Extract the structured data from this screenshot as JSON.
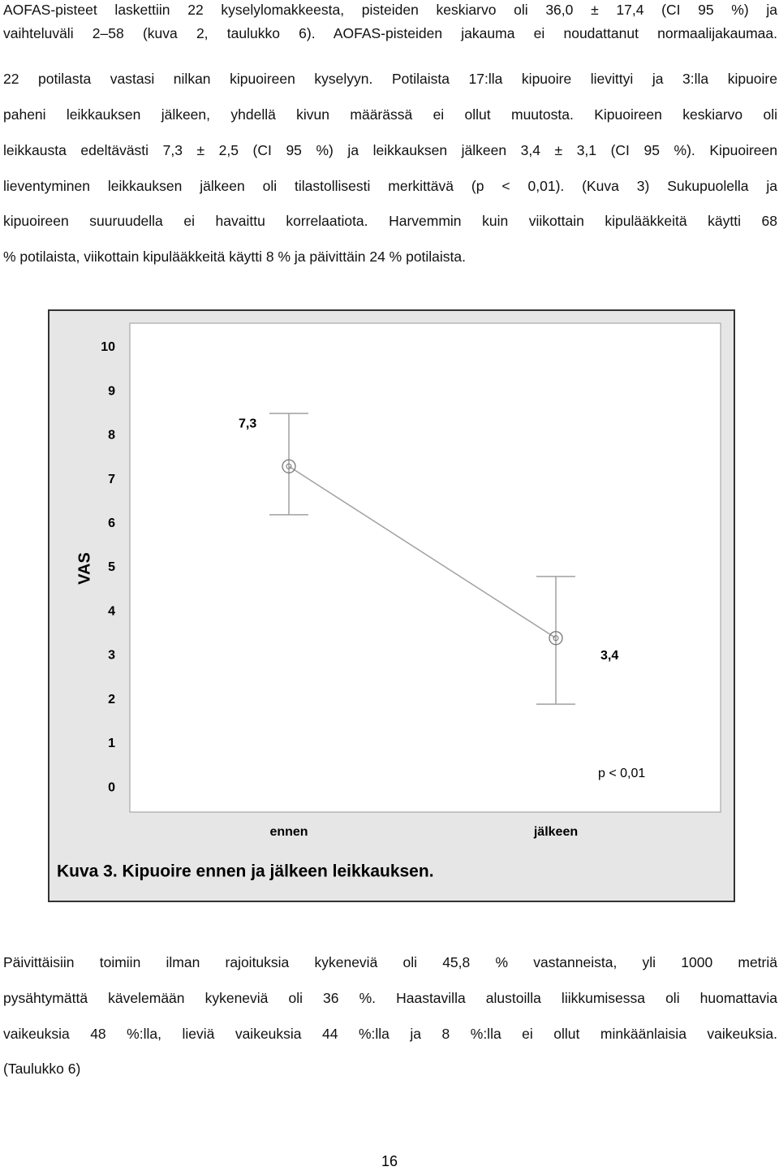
{
  "paragraphs": [
    {
      "lines": [
        "AOFAS-pisteet laskettiin 22 kyselylomakkeesta, pisteiden keskiarvo oli 36,0 ± 17,4 (CI 95 %) ja",
        "vaihteluväli 2–58 (kuva 2, taulukko 6). AOFAS-pisteiden jakauma ei noudattanut normaalijakaumaa.",
        "22 potilasta vastasi nilkan kipuoireen kyselyyn. Potilaista 17:lla kipuoire lievittyi ja 3:lla kipuoire",
        "paheni leikkauksen jälkeen, yhdellä kivun määrässä ei ollut muutosta. Kipuoireen keskiarvo oli",
        "leikkausta edeltävästi 7,3 ± 2,5 (CI 95 %) ja leikkauksen jälkeen 3,4 ± 3,1 (CI 95 %). Kipuoireen",
        "lieventyminen leikkauksen jälkeen oli tilastollisesti merkittävä (p < 0,01). (Kuva 3) Sukupuolella ja",
        "kipuoireen suuruudella ei havaittu korrelaatiota. Harvemmin kuin viikottain kipulääkkeitä käytti 68",
        "% potilaista, viikottain kipulääkkeitä käytti 8 % ja päivittäin 24 % potilaista."
      ]
    },
    {
      "lines": [
        "Päivittäisiin toimiin ilman rajoituksia kykeneviä oli 45,8 % vastanneista, yli 1000 metriä",
        "pysähtymättä kävelemään kykeneviä oli 36 %. Haastavilla alustoilla liikkumisessa oli huomattavia",
        "vaikeuksia 48 %:lla, lieviä vaikeuksia 44 %:lla ja 8 %:lla ei ollut minkäänlaisia vaikeuksia.",
        "(Taulukko 6)"
      ]
    }
  ],
  "chart_data": {
    "type": "errorbar",
    "caption": "Kuva 3. Kipuoire ennen ja jälkeen leikkauksen.",
    "ylabel": "VAS",
    "annotation": "p < 0,01",
    "categories": [
      "ennen",
      "jälkeen"
    ],
    "values": [
      7.3,
      3.4
    ],
    "value_labels": [
      "7,3",
      "3,4"
    ],
    "error_low": [
      6.2,
      1.9
    ],
    "error_high": [
      8.5,
      4.8
    ],
    "color": "#a0a0a0",
    "ylim": [
      -0.55,
      10.55
    ],
    "yticks": [
      0,
      1,
      2,
      3,
      4,
      5,
      6,
      7,
      8,
      9,
      10
    ]
  },
  "page_number": "16"
}
